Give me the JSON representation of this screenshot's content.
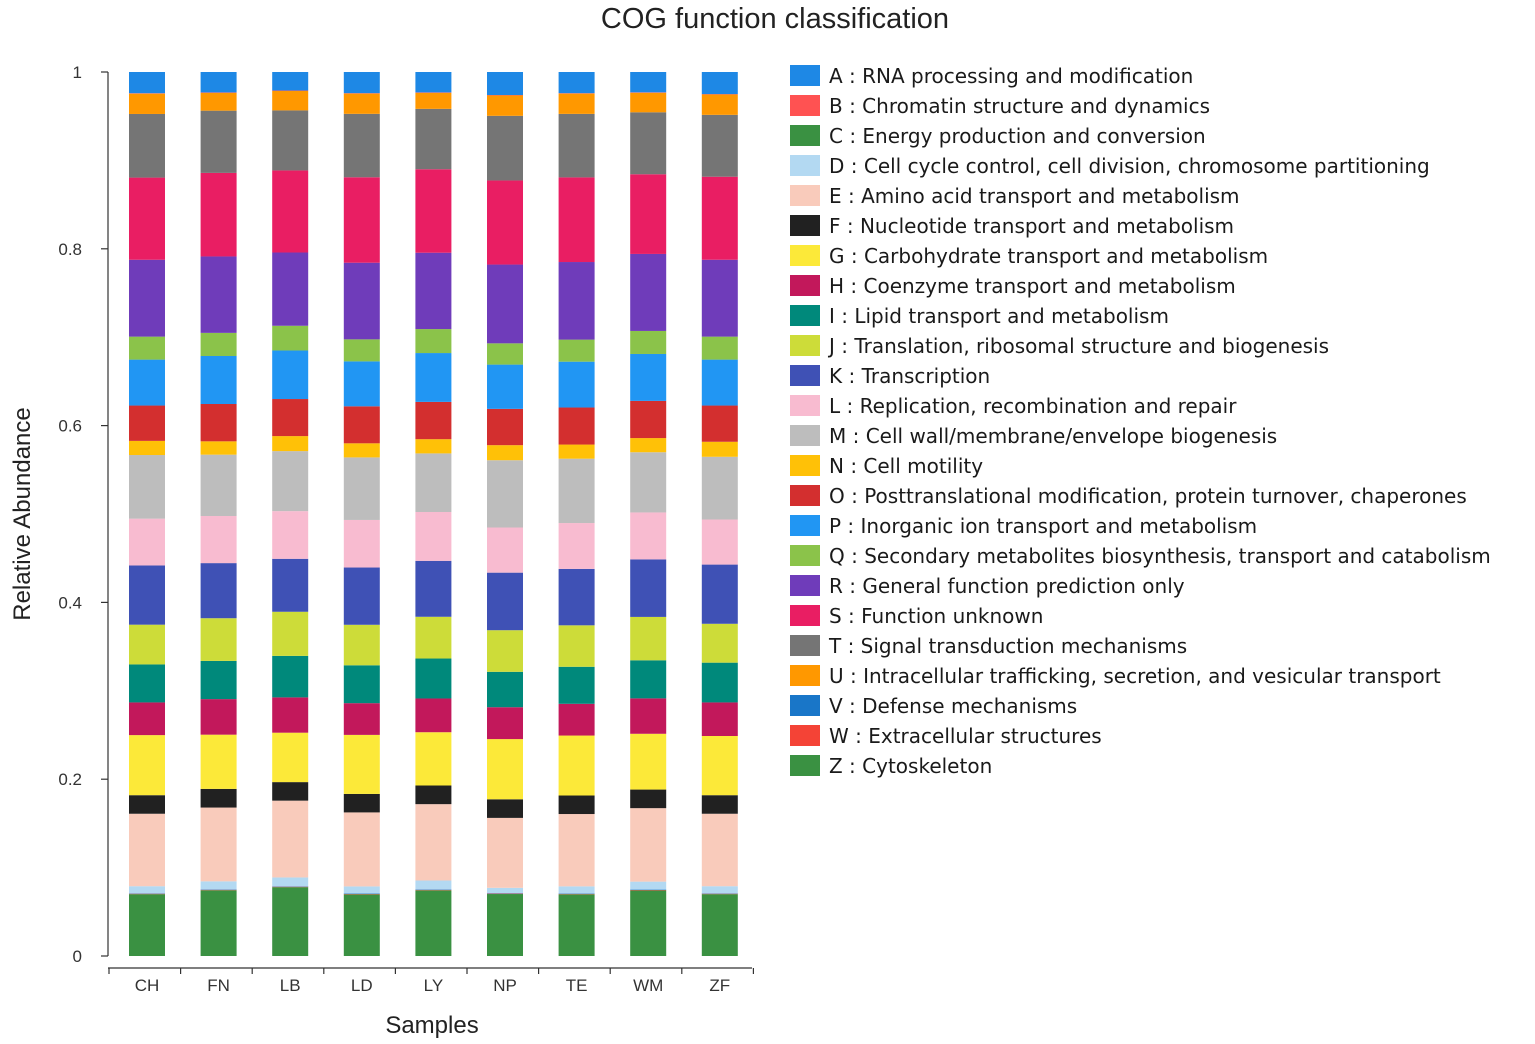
{
  "chart_data": {
    "type": "bar",
    "stacked": true,
    "title": "COG function classification",
    "xlabel": "Samples",
    "ylabel": "Relative Abundance",
    "ylim": [
      0,
      1
    ],
    "yticks": [
      "0",
      "0.2",
      "0.4",
      "0.6",
      "0.8",
      "1"
    ],
    "ytick_values": [
      0,
      0.2,
      0.4,
      0.6,
      0.8,
      1
    ],
    "legend_position": "right",
    "categories": [
      "CH",
      "FN",
      "LB",
      "LD",
      "LY",
      "NP",
      "TE",
      "WM",
      "ZF"
    ],
    "series": [
      {
        "code": "Z",
        "name": "Cytoskeleton",
        "color": "#3a9142",
        "values": [
          0.07,
          0.074,
          0.078,
          0.07,
          0.074,
          0.07,
          0.07,
          0.074,
          0.07
        ]
      },
      {
        "code": "W",
        "name": "Extracellular structures",
        "color": "#f44336",
        "values": [
          0.0005,
          0.0005,
          0.0005,
          0.0005,
          0.0005,
          0.0005,
          0.0005,
          0.0005,
          0.0005
        ]
      },
      {
        "code": "V",
        "name": "Defense mechanisms",
        "color": "#1976c8",
        "values": [
          0.0005,
          0.0005,
          0.0005,
          0.0005,
          0.0005,
          0.0005,
          0.0005,
          0.0005,
          0.0005
        ]
      },
      {
        "code": "D",
        "name": "Cell cycle control, cell division, chromosome partitioning",
        "color": "#b3d9f2",
        "values": [
          0.008,
          0.009,
          0.01,
          0.008,
          0.01,
          0.006,
          0.008,
          0.009,
          0.008
        ]
      },
      {
        "code": "E",
        "name": "Amino acid transport and metabolism",
        "color": "#f9cbbb",
        "values": [
          0.082,
          0.083,
          0.087,
          0.084,
          0.086,
          0.079,
          0.082,
          0.083,
          0.082
        ]
      },
      {
        "code": "F",
        "name": "Nucleotide transport and metabolism",
        "color": "#212121",
        "values": [
          0.021,
          0.021,
          0.021,
          0.021,
          0.021,
          0.021,
          0.021,
          0.021,
          0.021
        ]
      },
      {
        "code": "G",
        "name": "Carbohydrate transport and metabolism",
        "color": "#fce939",
        "values": [
          0.068,
          0.061,
          0.056,
          0.067,
          0.06,
          0.068,
          0.068,
          0.063,
          0.067
        ]
      },
      {
        "code": "H",
        "name": "Coenzyme transport and metabolism",
        "color": "#c2185b",
        "values": [
          0.037,
          0.04,
          0.04,
          0.036,
          0.038,
          0.036,
          0.036,
          0.04,
          0.038
        ]
      },
      {
        "code": "I",
        "name": "Lipid transport and metabolism",
        "color": "#00897b",
        "values": [
          0.043,
          0.043,
          0.047,
          0.043,
          0.045,
          0.04,
          0.042,
          0.043,
          0.045
        ]
      },
      {
        "code": "J",
        "name": "Translation, ribosomal structure and biogenesis",
        "color": "#cddc39",
        "values": [
          0.045,
          0.048,
          0.05,
          0.046,
          0.047,
          0.047,
          0.047,
          0.049,
          0.044
        ]
      },
      {
        "code": "K",
        "name": "Transcription",
        "color": "#3f51b5",
        "values": [
          0.067,
          0.062,
          0.06,
          0.065,
          0.063,
          0.065,
          0.064,
          0.065,
          0.067
        ]
      },
      {
        "code": "L",
        "name": "Replication, recombination and repair",
        "color": "#f8bbd0",
        "values": [
          0.053,
          0.053,
          0.054,
          0.054,
          0.055,
          0.051,
          0.052,
          0.053,
          0.051
        ]
      },
      {
        "code": "M",
        "name": "Cell wall/membrane/envelope biogenesis",
        "color": "#bdbdbd",
        "values": [
          0.072,
          0.069,
          0.068,
          0.071,
          0.066,
          0.076,
          0.073,
          0.068,
          0.071
        ]
      },
      {
        "code": "N",
        "name": "Cell motility",
        "color": "#ffc107",
        "values": [
          0.016,
          0.015,
          0.017,
          0.016,
          0.016,
          0.017,
          0.016,
          0.016,
          0.017
        ]
      },
      {
        "code": "O",
        "name": "Posttranslational modification, protein turnover, chaperones",
        "color": "#d32f2f",
        "values": [
          0.04,
          0.042,
          0.042,
          0.042,
          0.042,
          0.041,
          0.042,
          0.042,
          0.041
        ]
      },
      {
        "code": "P",
        "name": "Inorganic ion transport and metabolism",
        "color": "#2196f3",
        "values": [
          0.052,
          0.054,
          0.055,
          0.051,
          0.055,
          0.05,
          0.052,
          0.053,
          0.052
        ]
      },
      {
        "code": "Q",
        "name": "Secondary metabolites biosynthesis, transport and catabolism",
        "color": "#8bc34a",
        "values": [
          0.026,
          0.026,
          0.028,
          0.025,
          0.027,
          0.024,
          0.025,
          0.026,
          0.026
        ]
      },
      {
        "code": "R",
        "name": "General function prediction only",
        "color": "#6f3cba",
        "values": [
          0.087,
          0.086,
          0.083,
          0.087,
          0.086,
          0.089,
          0.088,
          0.087,
          0.087
        ]
      },
      {
        "code": "S",
        "name": "Function unknown",
        "color": "#e91e63",
        "values": [
          0.093,
          0.094,
          0.093,
          0.097,
          0.094,
          0.095,
          0.096,
          0.09,
          0.094
        ]
      },
      {
        "code": "T",
        "name": "Signal transduction mechanisms",
        "color": "#757575",
        "values": [
          0.072,
          0.07,
          0.068,
          0.072,
          0.068,
          0.073,
          0.072,
          0.07,
          0.07
        ]
      },
      {
        "code": "U",
        "name": "Intracellular trafficking, secretion, and vesicular transport",
        "color": "#ff9800",
        "values": [
          0.023,
          0.02,
          0.022,
          0.023,
          0.018,
          0.023,
          0.023,
          0.022,
          0.023
        ]
      },
      {
        "code": "B",
        "name": "Chromatin structure and dynamics",
        "color": "#ff5252",
        "values": [
          0.0005,
          0.0005,
          0.0005,
          0.0005,
          0.0005,
          0.0005,
          0.0005,
          0.0005,
          0.0005
        ]
      },
      {
        "code": "A",
        "name": "RNA processing and modification",
        "color": "#1e88e5",
        "values": [
          0.024,
          0.023,
          0.021,
          0.024,
          0.023,
          0.026,
          0.024,
          0.023,
          0.025
        ]
      }
    ],
    "legend": [
      {
        "label": "A : RNA processing and modification",
        "color": "#1e88e5"
      },
      {
        "label": "B : Chromatin structure and dynamics",
        "color": "#ff5252"
      },
      {
        "label": "C : Energy production and conversion",
        "color": "#3a9142"
      },
      {
        "label": "D : Cell cycle control, cell division, chromosome partitioning",
        "color": "#b3d9f2"
      },
      {
        "label": "E : Amino acid transport and metabolism",
        "color": "#f9cbbb"
      },
      {
        "label": "F : Nucleotide transport and metabolism",
        "color": "#212121"
      },
      {
        "label": "G : Carbohydrate transport and metabolism",
        "color": "#fce939"
      },
      {
        "label": "H : Coenzyme transport and metabolism",
        "color": "#c2185b"
      },
      {
        "label": "I : Lipid transport and metabolism",
        "color": "#00897b"
      },
      {
        "label": "J : Translation, ribosomal structure and biogenesis",
        "color": "#cddc39"
      },
      {
        "label": "K : Transcription",
        "color": "#3f51b5"
      },
      {
        "label": "L : Replication, recombination and repair",
        "color": "#f8bbd0"
      },
      {
        "label": "M : Cell wall/membrane/envelope biogenesis",
        "color": "#bdbdbd"
      },
      {
        "label": "N : Cell motility",
        "color": "#ffc107"
      },
      {
        "label": "O : Posttranslational modification, protein turnover, chaperones",
        "color": "#d32f2f"
      },
      {
        "label": "P : Inorganic ion transport and metabolism",
        "color": "#2196f3"
      },
      {
        "label": "Q : Secondary metabolites biosynthesis, transport and catabolism",
        "color": "#8bc34a"
      },
      {
        "label": "R : General function prediction only",
        "color": "#6f3cba"
      },
      {
        "label": "S : Function unknown",
        "color": "#e91e63"
      },
      {
        "label": "T : Signal transduction mechanisms",
        "color": "#757575"
      },
      {
        "label": "U : Intracellular trafficking, secretion, and vesicular transport",
        "color": "#ff9800"
      },
      {
        "label": "V : Defense mechanisms",
        "color": "#1976c8"
      },
      {
        "label": "W : Extracellular structures",
        "color": "#f44336"
      },
      {
        "label": "Z : Cytoskeleton",
        "color": "#3a9142"
      }
    ]
  }
}
